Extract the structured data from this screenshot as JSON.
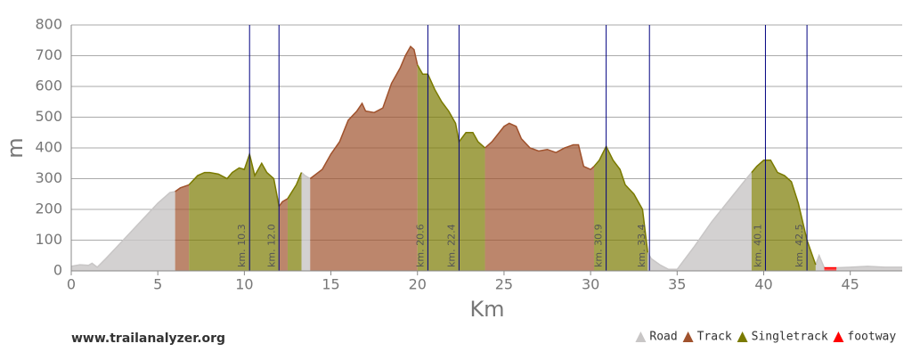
{
  "chart_data": {
    "type": "area",
    "ylabel": "m",
    "xlabel": "Km",
    "footer": "www.trailanalyzer.org",
    "xlim": [
      0,
      48
    ],
    "ylim": [
      0,
      800
    ],
    "xticks": [
      0,
      5,
      10,
      15,
      20,
      25,
      30,
      35,
      40,
      45
    ],
    "yticks": [
      0,
      100,
      200,
      300,
      400,
      500,
      600,
      700,
      800
    ],
    "grid": true,
    "markers": [
      {
        "value": 10.3,
        "label": "km. 10.3"
      },
      {
        "value": 12.0,
        "label": "km. 12.0"
      },
      {
        "value": 20.6,
        "label": "km. 20.6"
      },
      {
        "value": 22.4,
        "label": "km. 22.4"
      },
      {
        "value": 30.9,
        "label": "km. 30.9"
      },
      {
        "value": 33.4,
        "label": "km. 33.4"
      },
      {
        "value": 40.1,
        "label": "km. 40.1"
      },
      {
        "value": 42.5,
        "label": "km. 42.5"
      }
    ],
    "marker_color": "#000080",
    "series": [
      {
        "name": "Road",
        "color": "#c8c6c6",
        "x": [
          0,
          0.5,
          1,
          1.2,
          1.5,
          2,
          3,
          4,
          5,
          5.7,
          6,
          null,
          13.3,
          13.5,
          13.8,
          null,
          33.3,
          33.5,
          34,
          34.5,
          35,
          36,
          37,
          38,
          39,
          39.3,
          null,
          43,
          43.2,
          43.5,
          null,
          44.2,
          45,
          46,
          47,
          48
        ],
        "values": [
          15,
          20,
          18,
          25,
          12,
          40,
          100,
          160,
          220,
          255,
          258,
          null,
          320,
          310,
          300,
          null,
          60,
          40,
          20,
          5,
          5,
          80,
          160,
          230,
          300,
          320,
          null,
          20,
          50,
          10,
          null,
          10,
          12,
          15,
          12,
          12
        ]
      },
      {
        "name": "Track",
        "color": "#a0522d",
        "x": [
          6,
          6.3,
          6.8,
          null,
          12,
          12.2,
          12.5,
          null,
          13.8,
          14.5,
          15,
          15.5,
          16,
          16.5,
          16.8,
          17,
          17.5,
          18,
          18.5,
          19,
          19.3,
          19.6,
          19.8,
          20,
          null,
          23.9,
          24.3,
          25,
          25.3,
          25.7,
          26,
          26.5,
          27,
          27.5,
          28,
          28.5,
          29,
          29.3,
          29.6,
          30,
          30.2
        ],
        "values": [
          258,
          270,
          280,
          null,
          210,
          225,
          235,
          null,
          300,
          330,
          380,
          420,
          490,
          520,
          545,
          520,
          515,
          530,
          610,
          660,
          700,
          730,
          720,
          670,
          null,
          400,
          420,
          470,
          480,
          470,
          430,
          400,
          390,
          395,
          385,
          400,
          410,
          410,
          340,
          330,
          340
        ]
      },
      {
        "name": "Singletrack",
        "color": "#7a7a00",
        "x": [
          6.8,
          7.3,
          7.7,
          8,
          8.5,
          9,
          9.3,
          9.7,
          10,
          10.3,
          10.6,
          11,
          11.3,
          11.7,
          12,
          null,
          12.5,
          13,
          13.3,
          null,
          20,
          20.3,
          20.6,
          21,
          21.4,
          21.8,
          22.2,
          22.4,
          22.8,
          23.2,
          23.5,
          23.9,
          null,
          30.2,
          30.5,
          30.9,
          31.3,
          31.7,
          32,
          32.5,
          33,
          33.3,
          null,
          39.3,
          39.6,
          40,
          40.4,
          40.8,
          41.2,
          41.6,
          42,
          42.5,
          43
        ],
        "values": [
          280,
          310,
          320,
          320,
          315,
          300,
          320,
          335,
          330,
          380,
          310,
          350,
          320,
          300,
          210,
          null,
          235,
          280,
          320,
          null,
          670,
          640,
          640,
          590,
          550,
          520,
          480,
          420,
          450,
          450,
          420,
          400,
          null,
          340,
          360,
          405,
          360,
          330,
          280,
          250,
          200,
          60,
          null,
          320,
          340,
          360,
          360,
          320,
          310,
          290,
          220,
          100,
          20
        ]
      },
      {
        "name": "footway",
        "color": "#ff0000",
        "x": [
          43.5,
          44.2
        ],
        "values": [
          10,
          10
        ]
      }
    ]
  }
}
